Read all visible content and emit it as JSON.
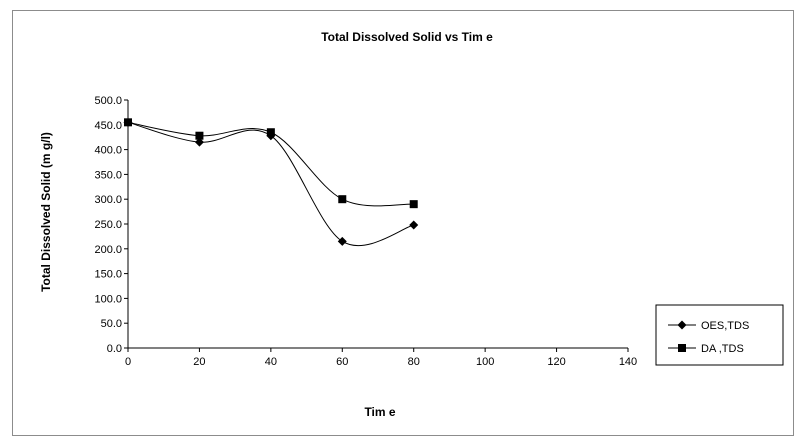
{
  "chart_data": {
    "type": "line",
    "title": "Total Dissolved Solid vs Tim e",
    "xlabel": "Tim e",
    "ylabel": "Total Dissolved Solid (m g/l)",
    "xlim": [
      0,
      140
    ],
    "ylim": [
      0,
      500
    ],
    "xticks": [
      0,
      20,
      40,
      60,
      80,
      100,
      120,
      140
    ],
    "yticks": [
      0,
      50,
      100,
      150,
      200,
      250,
      300,
      350,
      400,
      450,
      500
    ],
    "xtick_labels": [
      "0",
      "20",
      "40",
      "60",
      "80",
      "100",
      "120",
      "140"
    ],
    "ytick_labels": [
      "0.0",
      "50.0",
      "100.0",
      "150.0",
      "200.0",
      "250.0",
      "300.0",
      "350.0",
      "400.0",
      "450.0",
      "500.0"
    ],
    "grid": false,
    "legend_position": "right",
    "series": [
      {
        "name": "OES,TDS",
        "marker": "diamond",
        "color": "#000000",
        "x": [
          0,
          20,
          40,
          60,
          80
        ],
        "y": [
          455,
          415,
          428,
          215,
          248
        ]
      },
      {
        "name": "DA ,TDS",
        "marker": "square",
        "color": "#000000",
        "x": [
          0,
          20,
          40,
          60,
          80
        ],
        "y": [
          455,
          428,
          435,
          300,
          290
        ]
      }
    ]
  }
}
